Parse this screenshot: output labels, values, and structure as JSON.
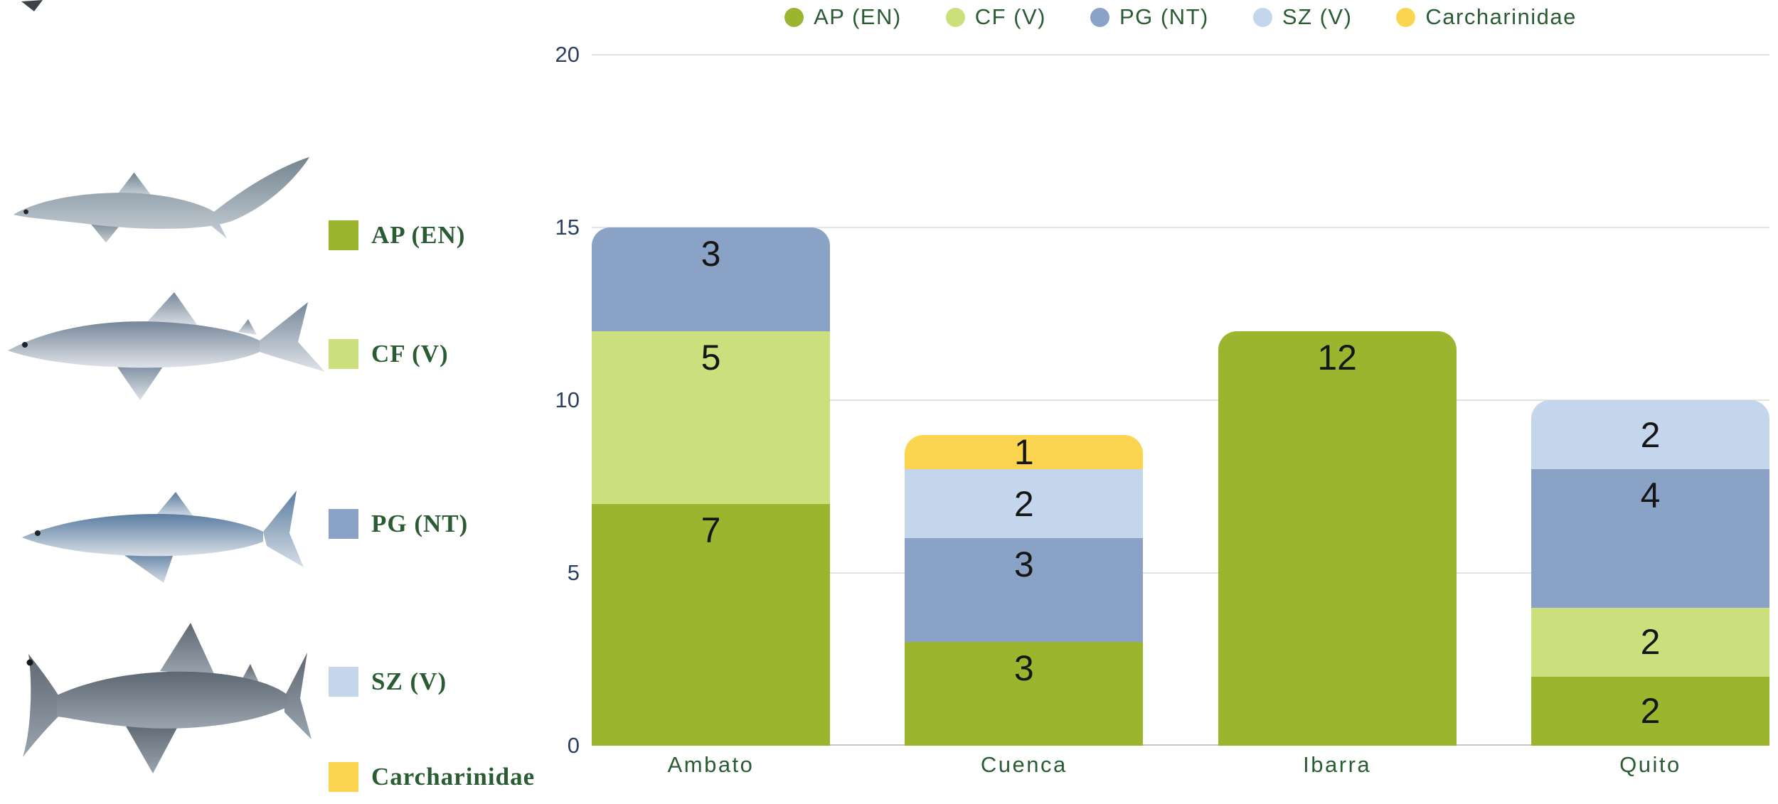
{
  "colors": {
    "ap_green": "#9bb52f",
    "cf_light_green": "#cbdf7d",
    "pg_steel_blue": "#8aa2c5",
    "sz_light_blue": "#c4d6ec",
    "carcharinidae_yellow": "#fbd54f",
    "legend_text_green": "#2a5c33",
    "tick_text_navy": "#2b3f60",
    "value_text": "#161616"
  },
  "top_legend": {
    "items": [
      {
        "label": "AP (EN)",
        "color": "#9bb52f"
      },
      {
        "label": "CF (V)",
        "color": "#cbdf7d"
      },
      {
        "label": "PG (NT)",
        "color": "#8aa2c5"
      },
      {
        "label": "SZ (V)",
        "color": "#c4d6ec"
      },
      {
        "label": "Carcharinidae",
        "color": "#fbd54f"
      }
    ]
  },
  "side_legend": {
    "items": [
      {
        "label": "AP (EN)",
        "color": "#9bb52f"
      },
      {
        "label": "CF (V)",
        "color": "#cbdf7d"
      },
      {
        "label": "PG (NT)",
        "color": "#8aa2c5"
      },
      {
        "label": "SZ (V)",
        "color": "#c4d6ec"
      },
      {
        "label": "Carcharinidae",
        "color": "#fbd54f"
      }
    ]
  },
  "sharks": [
    {
      "icon": "thresher-shark"
    },
    {
      "icon": "requiem-shark"
    },
    {
      "icon": "blue-shark"
    },
    {
      "icon": "hammerhead-shark"
    }
  ],
  "chart_data": {
    "type": "bar",
    "stacked": true,
    "title": "",
    "xlabel": "",
    "ylabel": "",
    "categories": [
      "Ambato",
      "Cuenca",
      "Ibarra",
      "Quito"
    ],
    "series": [
      {
        "name": "AP (EN)",
        "color": "#9bb52f",
        "values": [
          7,
          3,
          12,
          2
        ]
      },
      {
        "name": "CF (V)",
        "color": "#cbdf7d",
        "values": [
          5,
          0,
          0,
          2
        ]
      },
      {
        "name": "PG (NT)",
        "color": "#8aa2c5",
        "values": [
          3,
          3,
          0,
          4
        ]
      },
      {
        "name": "SZ (V)",
        "color": "#c4d6ec",
        "values": [
          0,
          2,
          0,
          2
        ]
      },
      {
        "name": "Carcharinidae",
        "color": "#fbd54f",
        "values": [
          0,
          1,
          0,
          0
        ]
      }
    ],
    "totals": [
      15,
      9,
      12,
      10
    ],
    "ylim": [
      0,
      20
    ],
    "yticks": [
      0,
      5,
      10,
      15,
      20
    ],
    "grid": true,
    "legend_position": "top",
    "value_labels": true
  }
}
